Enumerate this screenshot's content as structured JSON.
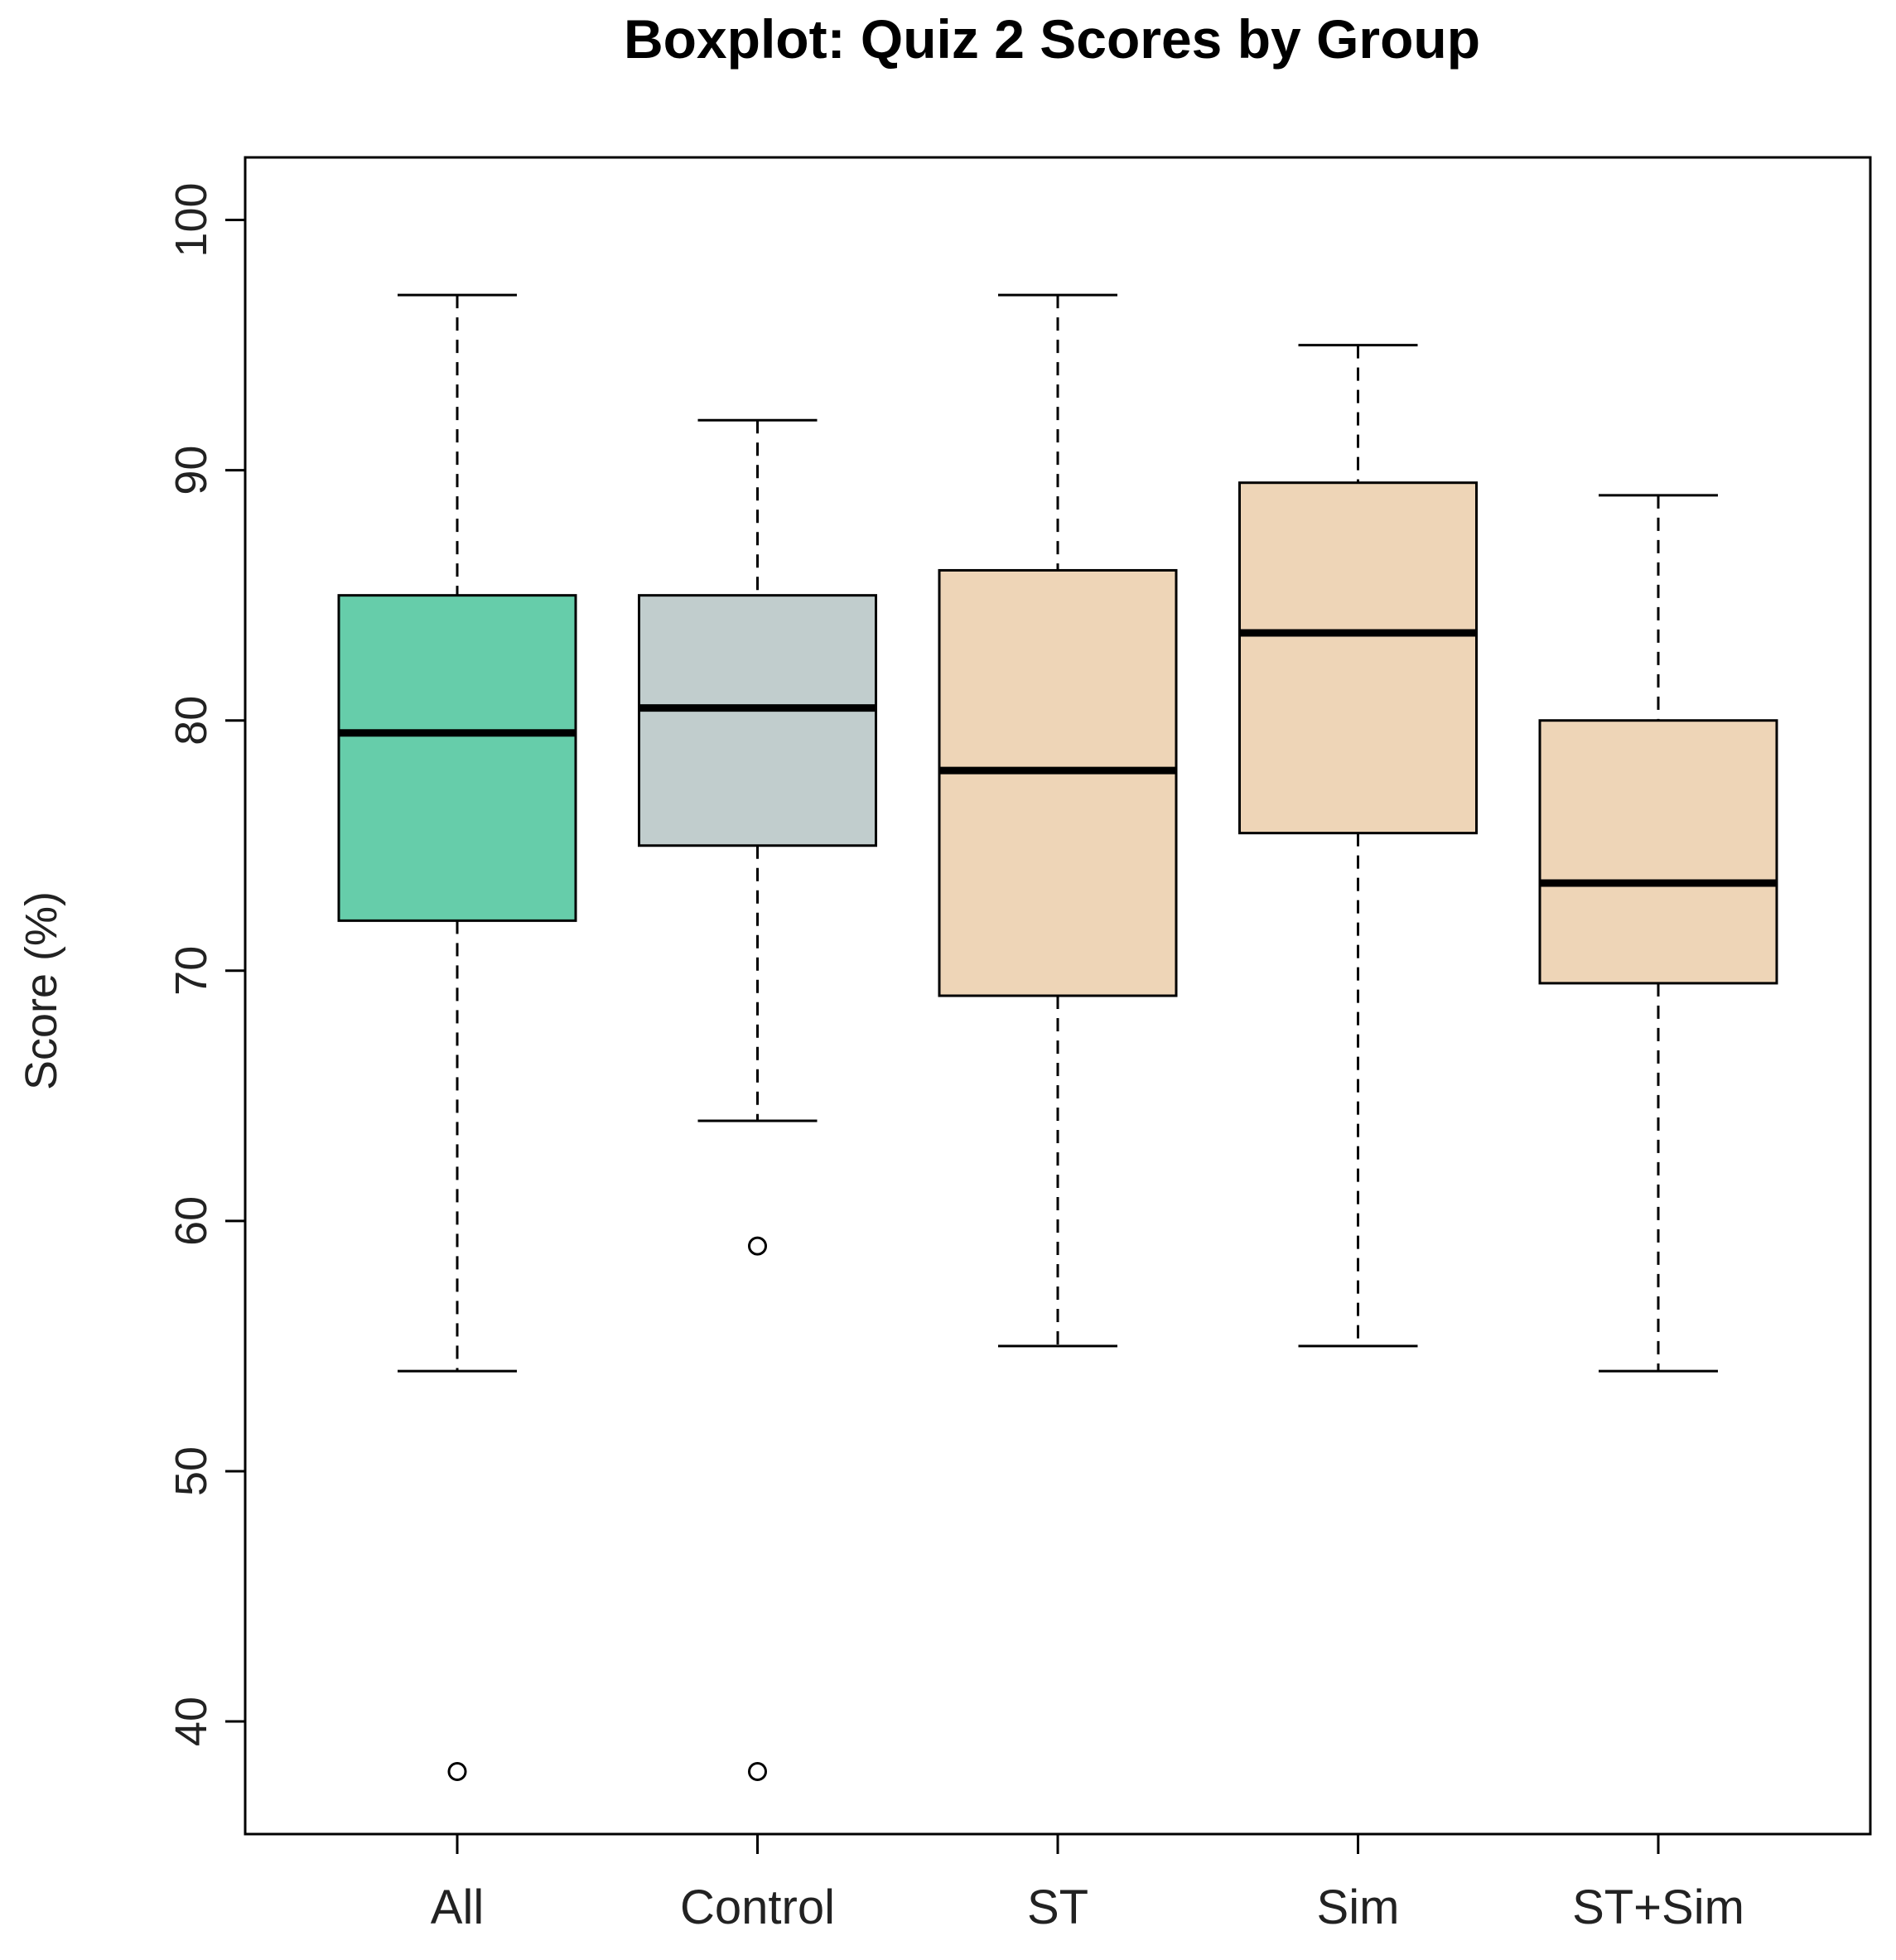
{
  "chart_data": {
    "type": "boxplot",
    "title": "Boxplot: Quiz 2 Scores by Group",
    "xlabel": "",
    "ylabel": "Score (%)",
    "ylim": [
      35.5,
      102.5
    ],
    "yticks": [
      40,
      50,
      60,
      70,
      80,
      90,
      100
    ],
    "ytick_labels": [
      "40",
      "50",
      "60",
      "70",
      "80",
      "90",
      "100"
    ],
    "grid": false,
    "groups": [
      {
        "name": "All",
        "color": "#66cdaa",
        "whisker_low": 54,
        "q1": 72,
        "median": 79.5,
        "q3": 85,
        "whisker_high": 97,
        "outliers": [
          38
        ]
      },
      {
        "name": "Control",
        "color": "#c1cdcd",
        "whisker_low": 64,
        "q1": 75,
        "median": 80.5,
        "q3": 85,
        "whisker_high": 92,
        "outliers": [
          59,
          38
        ]
      },
      {
        "name": "ST",
        "color": "#eed5b7",
        "whisker_low": 55,
        "q1": 69,
        "median": 78,
        "q3": 86,
        "whisker_high": 97,
        "outliers": []
      },
      {
        "name": "Sim",
        "color": "#eed5b7",
        "whisker_low": 55,
        "q1": 75.5,
        "median": 83.5,
        "q3": 89.5,
        "whisker_high": 95,
        "outliers": []
      },
      {
        "name": "ST+Sim",
        "color": "#eed5b7",
        "whisker_low": 54,
        "q1": 69.5,
        "median": 73.5,
        "q3": 80,
        "whisker_high": 89,
        "outliers": []
      }
    ]
  }
}
